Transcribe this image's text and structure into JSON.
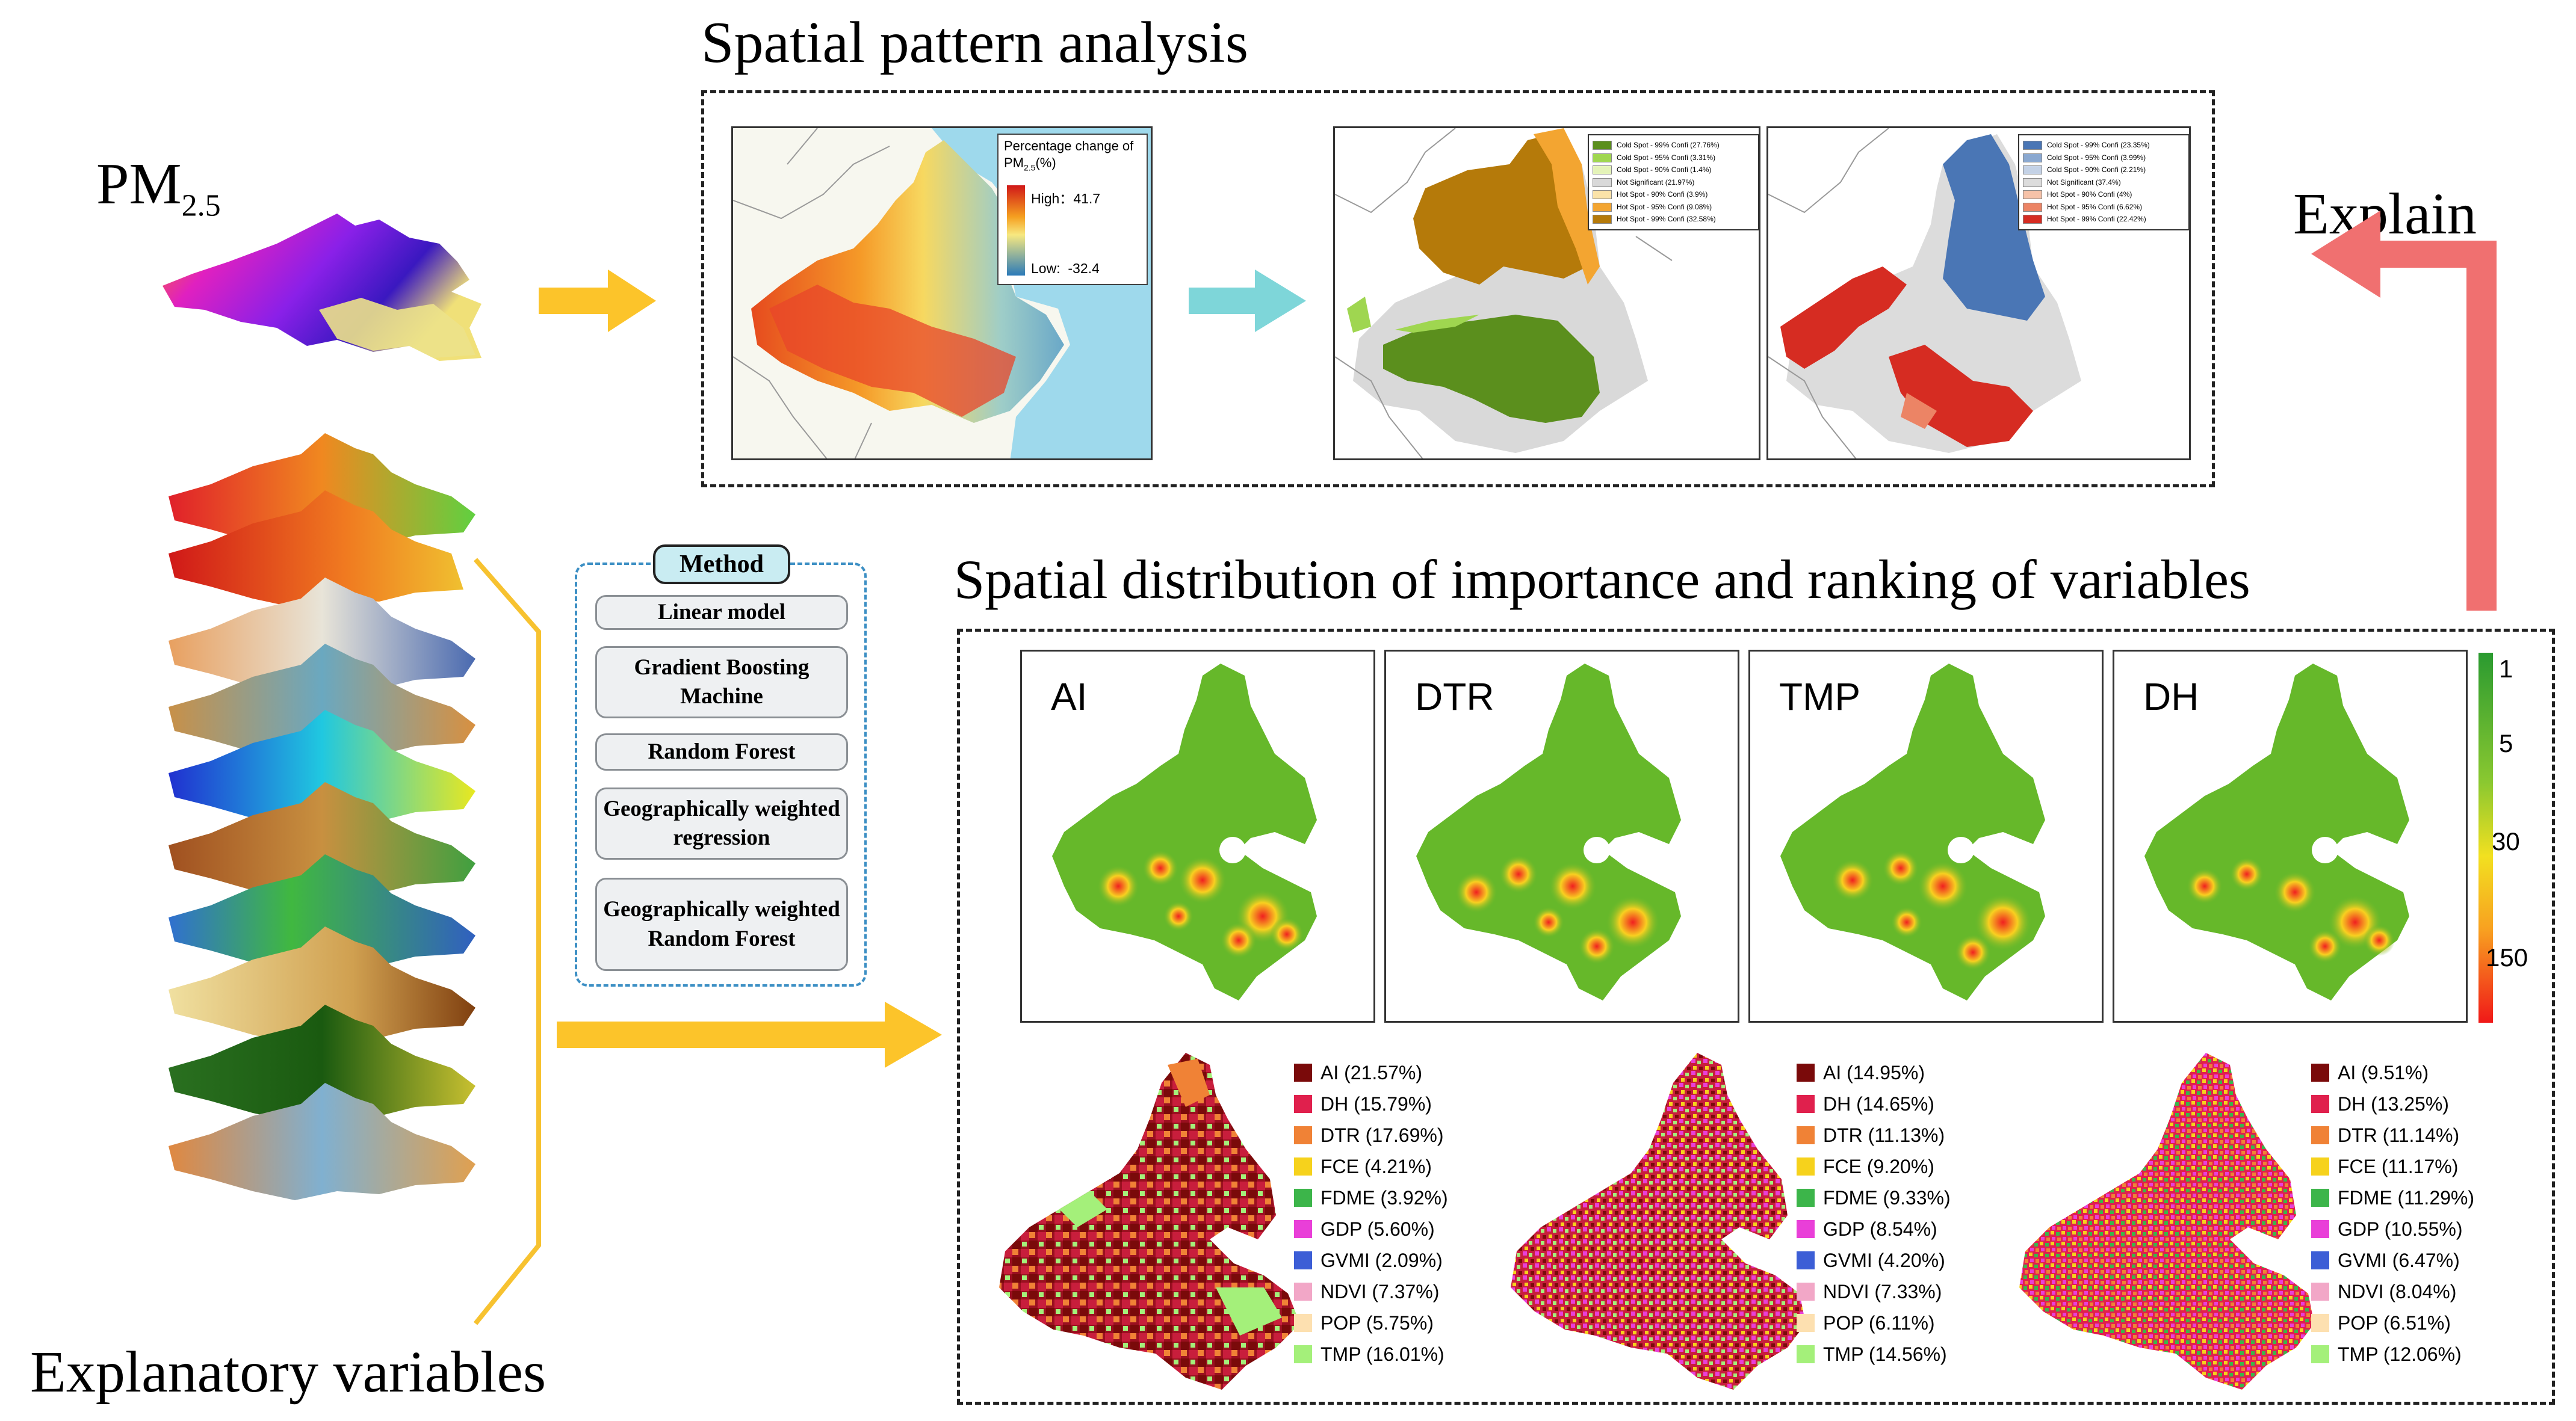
{
  "titles": {
    "spatial_pattern": "Spatial pattern analysis",
    "importance": "Spatial distribution of importance and ranking of variables",
    "explain": "Explain",
    "pm25_main": "PM",
    "pm25_sub": "2.5",
    "explanatory": "Explanatory variables"
  },
  "method": {
    "header": "Method",
    "items": [
      "Linear model",
      "Gradient Boosting Machine",
      "Random Forest",
      "Geographically weighted regression",
      "Geographically weighted Random Forest"
    ]
  },
  "pct_change_legend": {
    "title": "Percentage change of PM",
    "title_sub": "2.5",
    "title_unit": "(%)",
    "high_label": "High：",
    "high_value": "41.7",
    "low_label": "Low:",
    "low_value": "-32.4"
  },
  "hotspot_legend_1": [
    {
      "label": "Cold Spot - 99% Confi (27.76%)",
      "color": "#5b8f1d"
    },
    {
      "label": "Cold Spot - 95% Confi (3.31%)",
      "color": "#9fd650"
    },
    {
      "label": "Cold Spot - 90% Confi (1.4%)",
      "color": "#e4f3b8"
    },
    {
      "label": "Not Significant (21.97%)",
      "color": "#d9d9d9"
    },
    {
      "label": "Hot Spot - 90% Confi (3.9%)",
      "color": "#fbe3a8"
    },
    {
      "label": "Hot Spot - 95% Confi (9.08%)",
      "color": "#f3a531"
    },
    {
      "label": "Hot Spot - 99% Confi (32.58%)",
      "color": "#b57a0a"
    }
  ],
  "hotspot_legend_2": [
    {
      "label": "Cold Spot - 99% Confi (23.35%)",
      "color": "#4a76b5"
    },
    {
      "label": "Cold Spot - 95% Confi (3.99%)",
      "color": "#8aa8d0"
    },
    {
      "label": "Cold Spot - 90% Confi (2.21%)",
      "color": "#c4d2e6"
    },
    {
      "label": "Not Significant (37.4%)",
      "color": "#dcdcdc"
    },
    {
      "label": "Hot Spot - 90% Confi (4%)",
      "color": "#f6c2a8"
    },
    {
      "label": "Hot Spot - 95% Confi (6.62%)",
      "color": "#ec8465"
    },
    {
      "label": "Hot Spot - 99% Confi (22.42%)",
      "color": "#d62c22"
    }
  ],
  "rank_maps": [
    "AI",
    "DTR",
    "TMP",
    "DH"
  ],
  "rank_scale": [
    "1",
    "5",
    "30",
    "150"
  ],
  "importance_legends": [
    [
      "AI (21.57%)",
      "DH (15.79%)",
      "DTR (17.69%)",
      "FCE (4.21%)",
      "FDME (3.92%)",
      "GDP (5.60%)",
      "GVMI (2.09%)",
      "NDVI (7.37%)",
      "POP (5.75%)",
      "TMP (16.01%)"
    ],
    [
      "AI (14.95%)",
      "DH (14.65%)",
      "DTR (11.13%)",
      "FCE (9.20%)",
      "FDME (9.33%)",
      "GDP (8.54%)",
      "GVMI (4.20%)",
      "NDVI (7.33%)",
      "POP (6.11%)",
      "TMP (14.56%)"
    ],
    [
      "AI (9.51%)",
      "DH (13.25%)",
      "DTR (11.14%)",
      "FCE (11.17%)",
      "FDME (11.29%)",
      "GDP (10.55%)",
      "GVMI (6.47%)",
      "NDVI (8.04%)",
      "POP (6.51%)",
      "TMP (12.06%)"
    ]
  ],
  "importance_colors": [
    "#7a0a0a",
    "#e0204d",
    "#f08236",
    "#f6d21c",
    "#3cb54a",
    "#e93fd8",
    "#3c5ed6",
    "#f2a7c7",
    "#fde0b0",
    "#a4f07a"
  ],
  "colors": {
    "yellow_arrow": "#fcc42a",
    "cyan_arrow": "#7ed6d9",
    "red_arrow": "#f07070",
    "method_border": "#3c8fc4",
    "method_header_bg": "#c9ecf2",
    "sea": "#9ed9ec",
    "bracket": "#f7c230"
  }
}
